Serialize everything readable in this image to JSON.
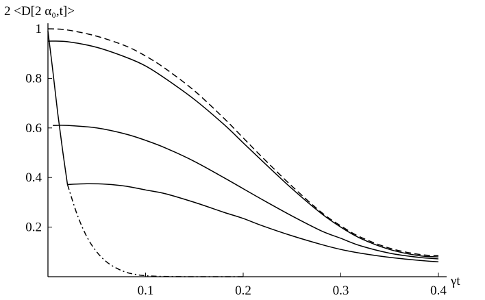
{
  "chart_data": {
    "type": "line",
    "ylabel": "2 <D[2 α₀,t]>",
    "xlabel": "γt",
    "xlim": [
      0,
      0.4
    ],
    "ylim": [
      0,
      1
    ],
    "x_ticks": [
      {
        "value": 0.1,
        "label": "0.1"
      },
      {
        "value": 0.2,
        "label": "0.2"
      },
      {
        "value": 0.3,
        "label": "0.3"
      },
      {
        "value": 0.4,
        "label": "0.4"
      }
    ],
    "y_ticks": [
      {
        "value": 0.2,
        "label": "0.2"
      },
      {
        "value": 0.4,
        "label": "0.4"
      },
      {
        "value": 0.6,
        "label": "0.6"
      },
      {
        "value": 0.8,
        "label": "0.8"
      },
      {
        "value": 1.0,
        "label": "1"
      }
    ],
    "grid": false,
    "legend": "none",
    "series": [
      {
        "style": "dashed",
        "x": [
          0.0,
          0.02,
          0.05,
          0.08,
          0.1,
          0.12,
          0.15,
          0.18,
          0.2,
          0.22,
          0.25,
          0.28,
          0.3,
          0.32,
          0.35,
          0.38,
          0.4
        ],
        "y": [
          1.0,
          0.995,
          0.97,
          0.93,
          0.89,
          0.84,
          0.75,
          0.64,
          0.56,
          0.48,
          0.365,
          0.26,
          0.205,
          0.16,
          0.115,
          0.09,
          0.085
        ]
      },
      {
        "style": "solid",
        "x": [
          0.0,
          0.02,
          0.05,
          0.08,
          0.1,
          0.12,
          0.15,
          0.18,
          0.2,
          0.22,
          0.25,
          0.28,
          0.3,
          0.32,
          0.35,
          0.38,
          0.4
        ],
        "y": [
          0.95,
          0.948,
          0.925,
          0.885,
          0.85,
          0.8,
          0.715,
          0.615,
          0.54,
          0.465,
          0.355,
          0.255,
          0.2,
          0.155,
          0.11,
          0.085,
          0.08
        ]
      },
      {
        "style": "solid",
        "x": [
          0.005,
          0.02,
          0.05,
          0.08,
          0.1,
          0.12,
          0.15,
          0.18,
          0.2,
          0.22,
          0.25,
          0.28,
          0.3,
          0.32,
          0.35,
          0.38,
          0.4
        ],
        "y": [
          0.61,
          0.61,
          0.6,
          0.575,
          0.55,
          0.52,
          0.465,
          0.4,
          0.355,
          0.31,
          0.245,
          0.185,
          0.155,
          0.125,
          0.095,
          0.078,
          0.072
        ]
      },
      {
        "style": "solid",
        "x": [
          0.02,
          0.04,
          0.06,
          0.08,
          0.1,
          0.12,
          0.15,
          0.18,
          0.2,
          0.22,
          0.25,
          0.28,
          0.3,
          0.32,
          0.35,
          0.38,
          0.4
        ],
        "y": [
          0.372,
          0.375,
          0.373,
          0.365,
          0.35,
          0.335,
          0.3,
          0.26,
          0.235,
          0.205,
          0.165,
          0.13,
          0.11,
          0.095,
          0.078,
          0.066,
          0.06
        ]
      },
      {
        "style": "solid",
        "x": [
          0.0,
          0.005,
          0.01,
          0.015,
          0.02
        ],
        "y": [
          0.99,
          0.83,
          0.66,
          0.51,
          0.372
        ]
      },
      {
        "style": "dash-dot",
        "x": [
          0.02,
          0.03,
          0.04,
          0.05,
          0.06,
          0.07,
          0.08,
          0.09,
          0.1,
          0.12,
          0.15,
          0.2
        ],
        "y": [
          0.372,
          0.25,
          0.16,
          0.1,
          0.06,
          0.035,
          0.018,
          0.009,
          0.004,
          0.001,
          0.0,
          0.0
        ]
      }
    ]
  }
}
